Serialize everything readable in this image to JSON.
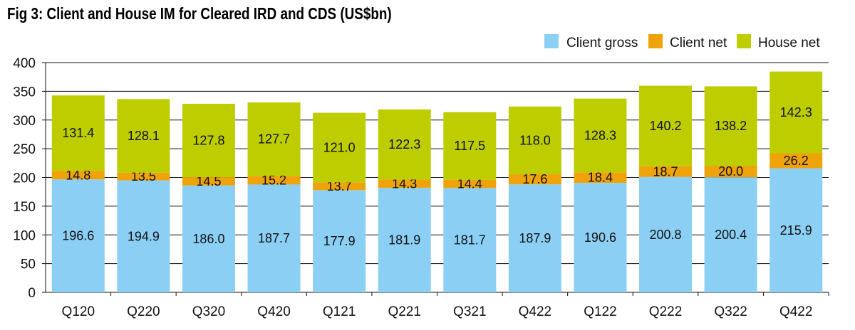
{
  "chart_data": {
    "type": "bar",
    "stacked": true,
    "title": "Fig 3: Client and House IM for Cleared IRD and CDS (US$bn)",
    "categories": [
      "Q120",
      "Q220",
      "Q320",
      "Q420",
      "Q121",
      "Q221",
      "Q321",
      "Q422",
      "Q122",
      "Q222",
      "Q322",
      "Q422"
    ],
    "series": [
      {
        "name": "Client gross",
        "color": "#8ccff5",
        "values": [
          196.6,
          194.9,
          186.0,
          187.7,
          177.9,
          181.9,
          181.7,
          187.9,
          190.6,
          200.8,
          200.4,
          215.9
        ],
        "labels": [
          "196.6",
          "194.9",
          "186.0",
          "187.7",
          "177.9",
          "181.9",
          "181.7",
          "187.9",
          "190.6",
          "200.8",
          "200.4",
          "215.9"
        ]
      },
      {
        "name": "Client net",
        "color": "#efa30b",
        "values": [
          14.8,
          13.5,
          14.5,
          15.2,
          13.7,
          14.3,
          14.4,
          17.6,
          18.4,
          18.7,
          20.0,
          26.2
        ],
        "labels": [
          "14.8",
          "13.5",
          "14.5",
          "15.2",
          "13.7",
          "14.3",
          "14.4",
          "17.6",
          "18.4",
          "18.7",
          "20.0",
          "26.2"
        ]
      },
      {
        "name": "House net",
        "color": "#bdcd00",
        "values": [
          131.4,
          128.1,
          127.8,
          127.7,
          121.0,
          122.3,
          117.5,
          118.0,
          128.3,
          140.2,
          138.2,
          142.3
        ],
        "labels": [
          "131.4",
          "128.1",
          "127.8",
          "127.7",
          "121.0",
          "122.3",
          "117.5",
          "118.0",
          "128.3",
          "140.2",
          "138.2",
          "142.3"
        ]
      }
    ],
    "ylim": [
      0,
      400
    ],
    "yticks": [
      0,
      50,
      100,
      150,
      200,
      250,
      300,
      350,
      400
    ],
    "grid": true,
    "legend": "top-right",
    "xlabel": "",
    "ylabel": ""
  }
}
